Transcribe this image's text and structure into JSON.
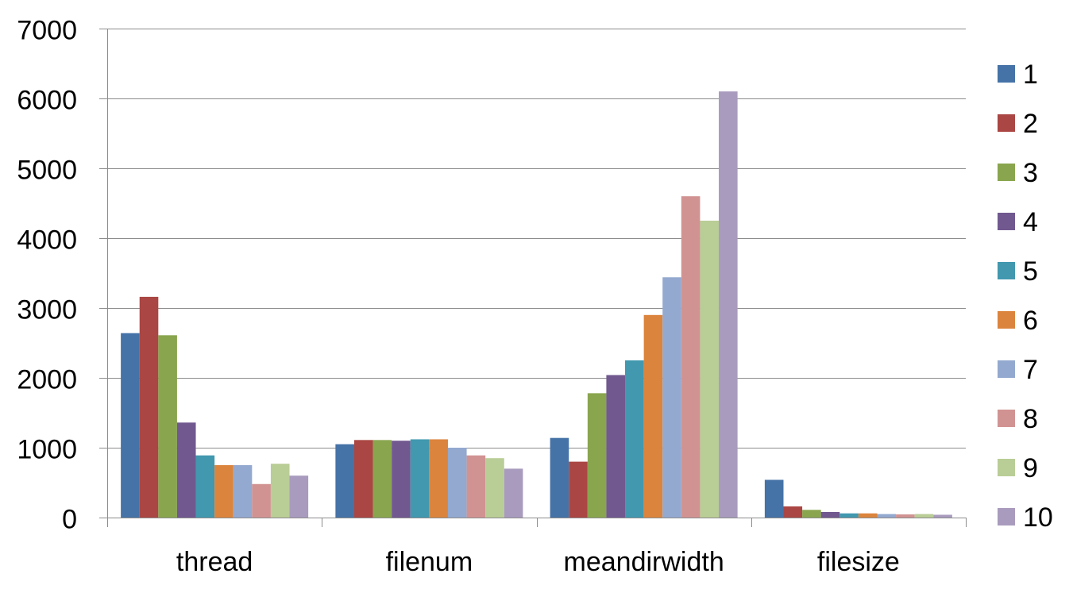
{
  "chart_data": {
    "type": "bar",
    "title": "",
    "xlabel": "",
    "ylabel": "",
    "categories": [
      "thread",
      "filenum",
      "meandirwidth",
      "filesize"
    ],
    "ylim": [
      0,
      7000
    ],
    "yticks": [
      "0",
      "1000",
      "2000",
      "3000",
      "4000",
      "5000",
      "6000",
      "7000"
    ],
    "grid": true,
    "legend": "right",
    "series": [
      {
        "name": "1",
        "color": "#4572a7",
        "values": [
          2640,
          1050,
          1140,
          540
        ]
      },
      {
        "name": "2",
        "color": "#aa4643",
        "values": [
          3160,
          1110,
          800,
          160
        ]
      },
      {
        "name": "3",
        "color": "#89a54e",
        "values": [
          2610,
          1110,
          1780,
          110
        ]
      },
      {
        "name": "4",
        "color": "#71588f",
        "values": [
          1360,
          1100,
          2040,
          80
        ]
      },
      {
        "name": "5",
        "color": "#4198af",
        "values": [
          890,
          1120,
          2250,
          60
        ]
      },
      {
        "name": "6",
        "color": "#db843d",
        "values": [
          750,
          1120,
          2900,
          60
        ]
      },
      {
        "name": "7",
        "color": "#93a9cf",
        "values": [
          750,
          1000,
          3440,
          50
        ]
      },
      {
        "name": "8",
        "color": "#d19392",
        "values": [
          480,
          890,
          4600,
          45
        ]
      },
      {
        "name": "9",
        "color": "#b9cd96",
        "values": [
          770,
          850,
          4250,
          50
        ]
      },
      {
        "name": "10",
        "color": "#a99bbd",
        "values": [
          600,
          700,
          6100,
          40
        ]
      }
    ]
  }
}
